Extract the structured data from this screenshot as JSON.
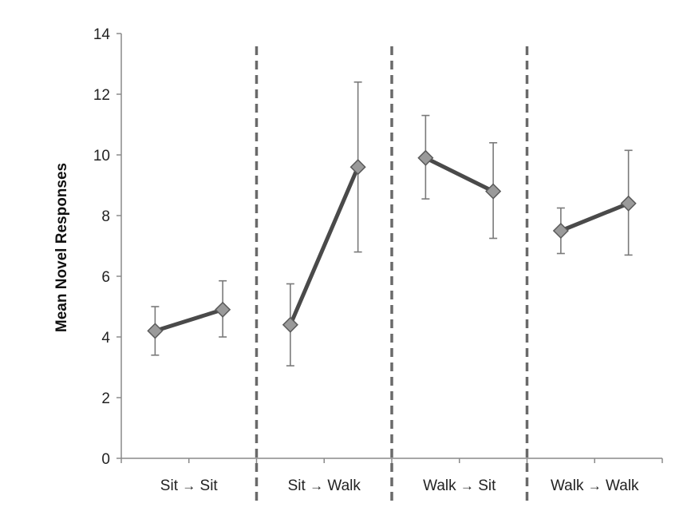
{
  "chart_data": {
    "type": "line",
    "ylabel": "Mean Novel Responses",
    "ylim": [
      0,
      14
    ],
    "yticks": [
      0,
      2,
      4,
      6,
      8,
      10,
      12,
      14
    ],
    "grid": false,
    "groups": [
      {
        "from": "Sit",
        "to": "Sit",
        "means": [
          4.2,
          4.9
        ],
        "errors_low": [
          3.4,
          4.0
        ],
        "errors_high": [
          5.0,
          5.85
        ]
      },
      {
        "from": "Sit",
        "to": "Walk",
        "means": [
          4.4,
          9.6
        ],
        "errors_low": [
          3.05,
          6.8
        ],
        "errors_high": [
          5.75,
          12.4
        ]
      },
      {
        "from": "Walk",
        "to": "Sit",
        "means": [
          9.9,
          8.8
        ],
        "errors_low": [
          8.55,
          7.25
        ],
        "errors_high": [
          11.3,
          10.4
        ]
      },
      {
        "from": "Walk",
        "to": "Walk",
        "means": [
          7.5,
          8.4
        ],
        "errors_low": [
          6.75,
          6.7
        ],
        "errors_high": [
          8.25,
          10.15
        ]
      }
    ],
    "arrow_glyph": "→",
    "colors": {
      "line": "#4a4a4a",
      "marker_fill": "#9a9a9a",
      "marker_stroke": "#5a5a5a",
      "error_bar": "#7a7a7a",
      "divider": "#6a6a6a",
      "axis": "#8a8a8a"
    }
  }
}
